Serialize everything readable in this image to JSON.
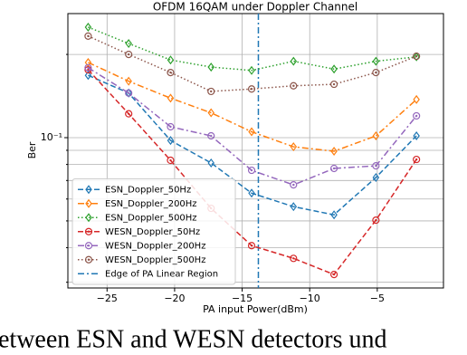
{
  "chart_data": {
    "type": "line",
    "title": "OFDM 16QAM under Doppler Channel",
    "xlabel": "PA input Power(dBm)",
    "ylabel": "Ber",
    "x": [
      -26.4,
      -23.4,
      -20.3,
      -17.3,
      -14.3,
      -11.2,
      -8.2,
      -5.1,
      -2.1
    ],
    "series": [
      {
        "name": "ESN_Doppler_50Hz",
        "color": "#1f77b4",
        "marker": "diamond",
        "linestyle": "dashed",
        "values": [
          0.168,
          0.145,
          0.0977,
          0.081,
          0.063,
          0.0563,
          0.0526,
          0.0718,
          0.1015
        ]
      },
      {
        "name": "ESN_Doppler_200Hz",
        "color": "#ff7f0e",
        "marker": "diamond",
        "linestyle": "dashdot",
        "values": [
          0.187,
          0.16,
          0.139,
          0.123,
          0.105,
          0.0927,
          0.0893,
          0.1015,
          0.1374
        ]
      },
      {
        "name": "ESN_Doppler_500Hz",
        "color": "#2ca02c",
        "marker": "diamond",
        "linestyle": "dotted",
        "values": [
          0.251,
          0.219,
          0.191,
          0.18,
          0.175,
          0.189,
          0.177,
          0.189,
          0.196
        ]
      },
      {
        "name": "WESN_Doppler_50Hz",
        "color": "#d62728",
        "marker": "circle",
        "linestyle": "dashed",
        "values": [
          0.176,
          0.122,
          0.0828,
          0.0555,
          0.0407,
          0.0366,
          0.032,
          0.0503,
          0.0834
        ]
      },
      {
        "name": "WESN_Doppler_200Hz",
        "color": "#9467bd",
        "marker": "circle",
        "linestyle": "dashdot",
        "values": [
          0.179,
          0.145,
          0.1095,
          0.1015,
          0.0762,
          0.0675,
          0.0774,
          0.0791,
          0.1199
        ]
      },
      {
        "name": "WESN_Doppler_500Hz",
        "color": "#8c564b",
        "marker": "circle",
        "linestyle": "dotted",
        "values": [
          0.233,
          0.2,
          0.172,
          0.147,
          0.15,
          0.154,
          0.156,
          0.172,
          0.197
        ]
      }
    ],
    "vlines": [
      {
        "name": "Edge of PA Linear Region",
        "x": -13.8,
        "color": "#1f77b4",
        "linestyle": "dashdot"
      }
    ],
    "xlim": [
      -27.9,
      -0.1
    ],
    "xticks": [
      {
        "value": -25,
        "label": "−25"
      },
      {
        "value": -20,
        "label": "−20"
      },
      {
        "value": -15,
        "label": "−15"
      },
      {
        "value": -10,
        "label": "−10"
      },
      {
        "value": -5,
        "label": "−5"
      }
    ],
    "ylim": [
      0.0286,
      0.281
    ],
    "yscale": "log",
    "yticks": [
      {
        "value": 0.1,
        "label": "10⁻¹"
      }
    ],
    "y_minor_ticks": [
      0.03,
      0.04,
      0.05,
      0.06,
      0.07,
      0.08,
      0.09,
      0.2
    ],
    "grid": true,
    "legend": "lower left"
  },
  "caption": "etween ESN and WESN detectors und"
}
